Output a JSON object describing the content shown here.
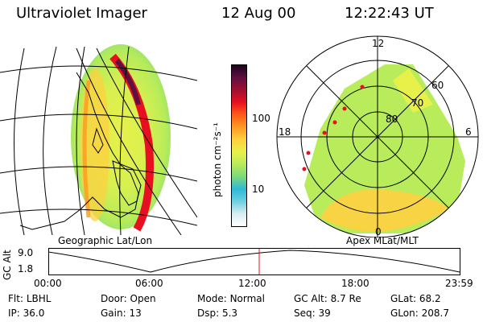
{
  "header": {
    "instrument": "Ultraviolet Imager",
    "date": "12 Aug 00",
    "time": "12:22:43 UT"
  },
  "colorbar": {
    "unit_label": "photon cm⁻²s⁻¹",
    "ticks": [
      {
        "label": "100",
        "value": 100
      },
      {
        "label": "10",
        "value": 10
      }
    ],
    "colors": [
      "#ffffff",
      "#d8eef0",
      "#6fd0e0",
      "#2fb8d8",
      "#7cd87c",
      "#b8ec5a",
      "#e8f04a",
      "#ffd040",
      "#ff9a20",
      "#ff5a18",
      "#e81020",
      "#a01030",
      "#601040",
      "#200020"
    ]
  },
  "geo_panel": {
    "label": "Geographic Lat/Lon"
  },
  "polar_panel": {
    "label": "Apex MLat/MLT",
    "mlt_labels": [
      "12",
      "18",
      "6",
      "0"
    ],
    "lat_labels": [
      "60",
      "70",
      "80"
    ]
  },
  "altitude_plot": {
    "ylabel": "GC Alt",
    "yticks": [
      "9.0",
      "1.8"
    ],
    "xticks": [
      "00:00",
      "06:00",
      "12:00",
      "18:00",
      "23:59"
    ],
    "cursor_time": "12:22"
  },
  "status": {
    "row1": [
      {
        "label": "Flt:",
        "value": "LBHL"
      },
      {
        "label": "Door:",
        "value": "Open"
      },
      {
        "label": "Mode:",
        "value": "Normal"
      },
      {
        "label": "GC Alt:",
        "value": "8.7 Re"
      },
      {
        "label": "GLat:",
        "value": "68.2"
      }
    ],
    "row2": [
      {
        "label": "IP:",
        "value": "36.0"
      },
      {
        "label": "Gain:",
        "value": "13"
      },
      {
        "label": "Dsp:",
        "value": "5.3"
      },
      {
        "label": "Seq:",
        "value": "39"
      },
      {
        "label": "GLon:",
        "value": "208.7"
      }
    ]
  }
}
